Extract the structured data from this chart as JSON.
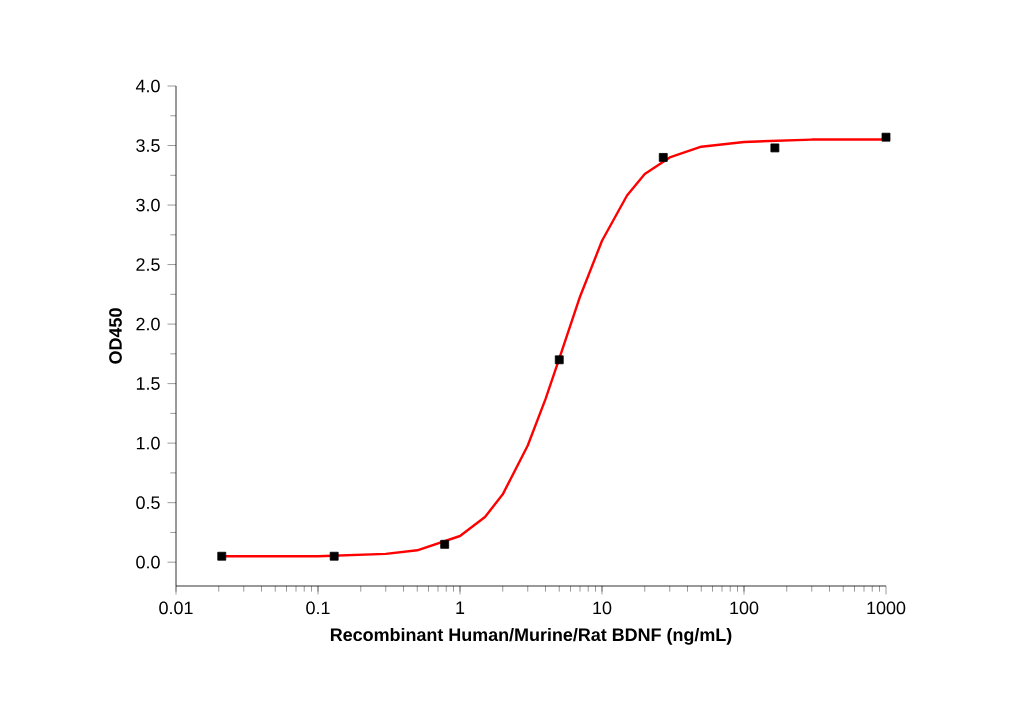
{
  "chart_data": {
    "type": "scatter",
    "xlabel": "Recombinant Human/Murine/Rat BDNF (ng/mL)",
    "ylabel": "OD450",
    "log": "x",
    "xlim": [
      0.01,
      1000
    ],
    "xticks": [
      0.01,
      0.1,
      1,
      10,
      100,
      1000
    ],
    "ylim": [
      -0.2,
      4.0
    ],
    "yticks": [
      {
        "value": 0,
        "label": "0.0"
      },
      0.5,
      {
        "value": 1,
        "label": "1.0"
      },
      1.5,
      {
        "value": 2,
        "label": "2.0"
      },
      2.5,
      {
        "value": 3,
        "label": "3.0"
      },
      3.5,
      {
        "value": 4,
        "label": "4.0"
      }
    ],
    "grid": false,
    "series": [
      {
        "type": "line",
        "color": "#ff0000",
        "marker": "none",
        "line_style": "solid",
        "x": [
          0.02,
          0.1,
          0.3,
          0.5,
          1,
          1.5,
          2,
          3,
          4,
          5,
          7,
          10,
          15,
          20,
          30,
          50,
          100,
          300,
          1000
        ],
        "values": [
          0.05,
          0.05,
          0.07,
          0.1,
          0.22,
          0.38,
          0.57,
          0.98,
          1.37,
          1.71,
          2.23,
          2.7,
          3.08,
          3.26,
          3.4,
          3.49,
          3.53,
          3.55,
          3.55
        ]
      },
      {
        "color": "#000000",
        "marker": "square",
        "x": [
          0.021,
          0.13,
          0.78,
          5,
          27,
          165,
          1000
        ],
        "values": [
          0.05,
          0.05,
          0.15,
          1.7,
          3.4,
          3.48,
          3.57
        ]
      }
    ]
  }
}
